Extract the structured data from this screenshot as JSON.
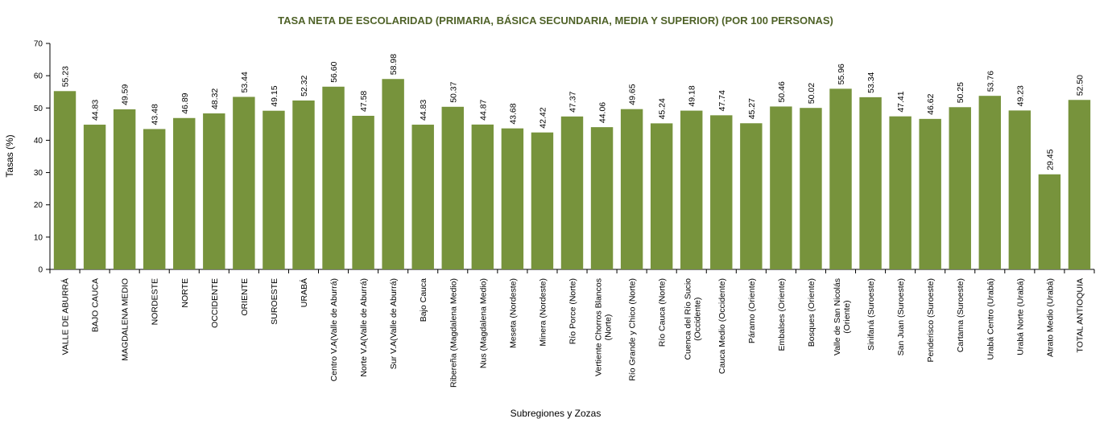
{
  "chart_data": {
    "type": "bar",
    "title": "TASA NETA DE ESCOLARIDAD (PRIMARIA, BÁSICA SECUNDARIA, MEDIA Y SUPERIOR) (POR 100 PERSONAS)",
    "xlabel": "Subregiones y Zozas",
    "ylabel": "Tasas (%)",
    "ylim": [
      0,
      70
    ],
    "yticks": [
      0,
      10,
      20,
      30,
      40,
      50,
      60,
      70
    ],
    "grid": false,
    "legend": "none",
    "colors": {
      "bar": "#77933C",
      "title": "#4F6228"
    },
    "categories": [
      [
        "VALLE DE ABURRÁ"
      ],
      [
        "BAJO CAUCA"
      ],
      [
        "MAGDALENA MEDIO"
      ],
      [
        "NORDESTE"
      ],
      [
        "NORTE"
      ],
      [
        "OCCIDENTE"
      ],
      [
        "ORIENTE"
      ],
      [
        "SUROESTE"
      ],
      [
        "URABÁ"
      ],
      [
        "Centro V.A(Valle de Aburrá)"
      ],
      [
        "Norte V.A(Valle de Aburrá)"
      ],
      [
        "Sur V.A(Valle de Aburrá)"
      ],
      [
        "Bajo Cauca"
      ],
      [
        "Ribereña  (Magdalena Medio)"
      ],
      [
        "Nus  (Magdalena Medio)"
      ],
      [
        "Meseta  (Nordeste)"
      ],
      [
        "Minera  (Nordeste)"
      ],
      [
        "Río Porce   (Norte)"
      ],
      [
        "Vertiente Chorros Blancos",
        "(Norte)"
      ],
      [
        "Río Grande y Chico  (Norte)"
      ],
      [
        "Río Cauca  (Norte)"
      ],
      [
        "Cuenca del Río Sucio",
        "(Occidente)"
      ],
      [
        "Cauca Medio  (Occidente)"
      ],
      [
        "Páramo  (Oriente)"
      ],
      [
        "Embalses  (Oriente)"
      ],
      [
        "Bosques  (Oriente)"
      ],
      [
        "Valle de San Nicolás",
        "(Oriente)"
      ],
      [
        "Sinifaná  (Suroeste)"
      ],
      [
        "San Juan  (Suroeste)"
      ],
      [
        "Penderisco  (Suroeste)"
      ],
      [
        "Cartama  (Suroeste)"
      ],
      [
        "Urabá Centro  (Urabá)"
      ],
      [
        "Urabá Norte  (Urabá)"
      ],
      [
        "Atrato Medio (Urabá)"
      ],
      [
        "TOTAL ANTIOQUIA"
      ]
    ],
    "values": [
      55.23,
      44.83,
      49.59,
      43.48,
      46.89,
      48.32,
      53.44,
      49.15,
      52.32,
      56.6,
      47.58,
      58.98,
      44.83,
      50.37,
      44.87,
      43.68,
      42.42,
      47.37,
      44.06,
      49.65,
      45.24,
      49.18,
      47.74,
      45.27,
      50.46,
      50.02,
      55.96,
      53.34,
      47.41,
      46.62,
      50.25,
      53.76,
      49.23,
      29.45,
      52.5
    ],
    "value_labels": [
      "55.23",
      "44.83",
      "49.59",
      "43.48",
      "46.89",
      "48.32",
      "53.44",
      "49.15",
      "52.32",
      "56.60",
      "47.58",
      "58.98",
      "44.83",
      "50.37",
      "44.87",
      "43.68",
      "42.42",
      "47.37",
      "44.06",
      "49.65",
      "45.24",
      "49.18",
      "47.74",
      "45.27",
      "50.46",
      "50.02",
      "55.96",
      "53.34",
      "47.41",
      "46.62",
      "50.25",
      "53.76",
      "49.23",
      "29.45",
      "52.50"
    ]
  }
}
